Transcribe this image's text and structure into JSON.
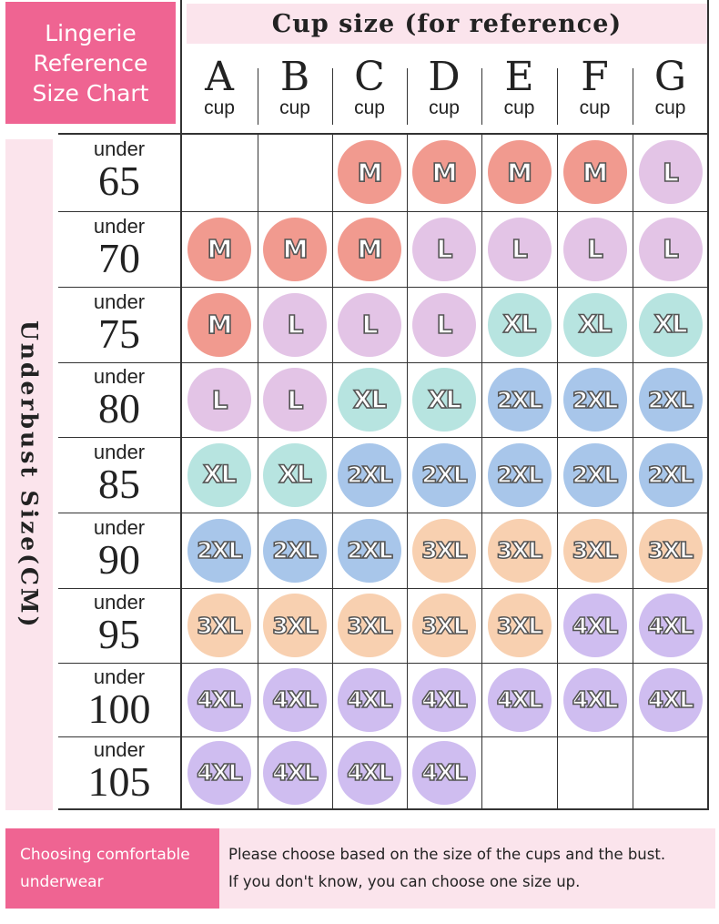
{
  "title": {
    "line1": "Lingerie",
    "line2": "Reference",
    "line3": "Size Chart"
  },
  "cup_header": "Cup size (for reference)",
  "cups": [
    {
      "letter": "A",
      "unit": "cup"
    },
    {
      "letter": "B",
      "unit": "cup"
    },
    {
      "letter": "C",
      "unit": "cup"
    },
    {
      "letter": "D",
      "unit": "cup"
    },
    {
      "letter": "E",
      "unit": "cup"
    },
    {
      "letter": "F",
      "unit": "cup"
    },
    {
      "letter": "G",
      "unit": "cup"
    }
  ],
  "side_label": "Underbust Size(CM)",
  "row_prefix": "under",
  "rows": [
    {
      "band": "65",
      "sizes": [
        "",
        "",
        "M",
        "M",
        "M",
        "M",
        "L"
      ]
    },
    {
      "band": "70",
      "sizes": [
        "M",
        "M",
        "M",
        "L",
        "L",
        "L",
        "L"
      ]
    },
    {
      "band": "75",
      "sizes": [
        "M",
        "L",
        "L",
        "L",
        "XL",
        "XL",
        "XL"
      ]
    },
    {
      "band": "80",
      "sizes": [
        "L",
        "L",
        "XL",
        "XL",
        "2XL",
        "2XL",
        "2XL"
      ]
    },
    {
      "band": "85",
      "sizes": [
        "XL",
        "XL",
        "2XL",
        "2XL",
        "2XL",
        "2XL",
        "2XL"
      ]
    },
    {
      "band": "90",
      "sizes": [
        "2XL",
        "2XL",
        "2XL",
        "3XL",
        "3XL",
        "3XL",
        "3XL"
      ]
    },
    {
      "band": "95",
      "sizes": [
        "3XL",
        "3XL",
        "3XL",
        "3XL",
        "3XL",
        "4XL",
        "4XL"
      ]
    },
    {
      "band": "100",
      "sizes": [
        "4XL",
        "4XL",
        "4XL",
        "4XL",
        "4XL",
        "4XL",
        "4XL"
      ]
    },
    {
      "band": "105",
      "sizes": [
        "4XL",
        "4XL",
        "4XL",
        "4XL",
        "",
        "",
        ""
      ]
    }
  ],
  "size_colors": {
    "M": "#f19a8f",
    "L": "#e3c4e6",
    "XL": "#b7e4e0",
    "2XL": "#a8c6ea",
    "3XL": "#f8d0b0",
    "4XL": "#cfbdf0"
  },
  "footer": {
    "left_line1": "Choosing comfortable",
    "left_line2": "underwear",
    "right_line1": "Please choose based on the size of the cups and the bust.",
    "right_line2": "If you don't know, you can choose one size up."
  },
  "colors": {
    "accent": "#ef6492",
    "accent_light": "#fbe4ec"
  }
}
